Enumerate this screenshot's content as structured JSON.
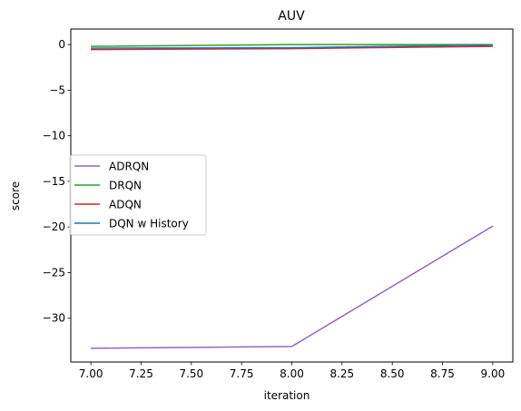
{
  "chart_data": {
    "type": "line",
    "title": "AUV",
    "xlabel": "iteration",
    "ylabel": "score",
    "xlim": [
      6.9,
      9.1
    ],
    "ylim": [
      -34.8,
      1.7
    ],
    "x_ticks": [
      "7.00",
      "7.25",
      "7.50",
      "7.75",
      "8.00",
      "8.25",
      "8.50",
      "8.75",
      "9.00"
    ],
    "y_ticks": [
      "0",
      "−5",
      "−10",
      "−15",
      "−20",
      "−25",
      "−30"
    ],
    "grid": false,
    "legend_position": "center-left",
    "x": [
      7,
      8,
      9
    ],
    "series": [
      {
        "name": "ADRQN",
        "color": "#9467bd",
        "values": [
          -33.3,
          -33.1,
          -19.9
        ]
      },
      {
        "name": "DRQN",
        "color": "#2ca02c",
        "values": [
          -0.2,
          0.0,
          0.0
        ]
      },
      {
        "name": "ADQN",
        "color": "#d62728",
        "values": [
          -0.55,
          -0.45,
          -0.2
        ]
      },
      {
        "name": "DQN w History",
        "color": "#1f77b4",
        "values": [
          -0.4,
          -0.35,
          -0.05
        ]
      }
    ]
  }
}
